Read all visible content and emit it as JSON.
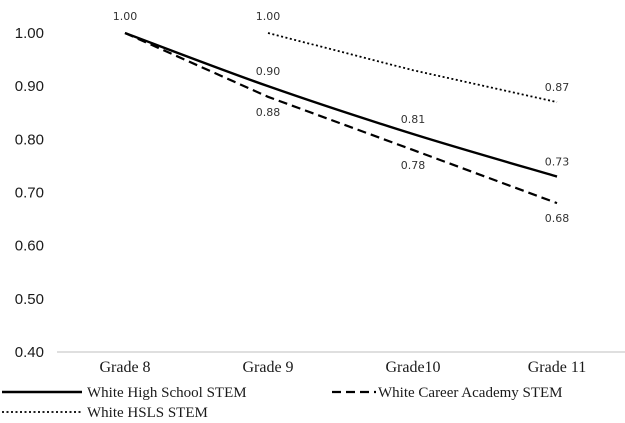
{
  "chart_data": {
    "type": "line",
    "title": "",
    "xlabel": "",
    "ylabel": "",
    "categories": [
      "Grade 8",
      "Grade 9",
      "Grade10",
      "Grade 11"
    ],
    "y_ticks": [
      "1.00",
      "0.90",
      "0.80",
      "0.70",
      "0.60",
      "0.50",
      "0.40"
    ],
    "ylim": [
      0.4,
      1.0
    ],
    "grid": false,
    "legend_position": "bottom",
    "series": [
      {
        "name": "White  High School STEM",
        "style": "solid",
        "color": "#000000",
        "values": [
          1.0,
          0.9,
          0.81,
          0.73
        ],
        "labels": [
          "1.00",
          "0.90",
          "0.81",
          "0.73"
        ]
      },
      {
        "name": "White Career Academy STEM",
        "style": "dashed",
        "color": "#000000",
        "values": [
          1.0,
          0.88,
          0.78,
          0.68
        ],
        "labels": [
          "",
          "0.88",
          "0.78",
          "0.68"
        ]
      },
      {
        "name": "White HSLS STEM",
        "style": "dotted",
        "color": "#000000",
        "values": [
          null,
          1.0,
          0.93,
          0.87
        ],
        "labels": [
          "",
          "1.00",
          "",
          "0.87"
        ]
      }
    ]
  }
}
